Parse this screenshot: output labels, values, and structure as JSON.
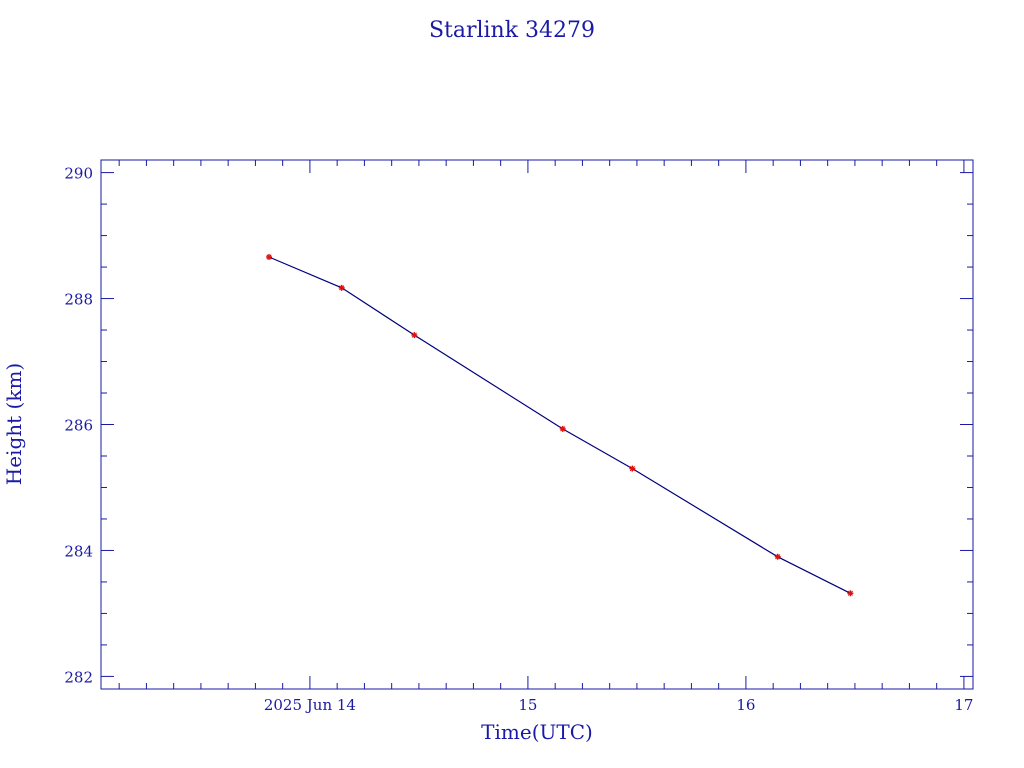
{
  "chart_data": {
    "type": "line",
    "title": "Starlink 34279",
    "xlabel": "Time(UTC)",
    "ylabel": "Height (km)",
    "x_unit": "day",
    "x_tick_labels": [
      {
        "x": "2025-06-14",
        "label": "2025 Jun 14"
      },
      {
        "x": "2025-06-15",
        "label": "15"
      },
      {
        "x": "2025-06-16",
        "label": "16"
      },
      {
        "x": "2025-06-17",
        "label": "17"
      }
    ],
    "xlim": [
      "2025-06-13T01:00",
      "2025-06-17T01:00"
    ],
    "ylim": [
      281.8,
      290.2
    ],
    "y_ticks": [
      282,
      284,
      286,
      288,
      290
    ],
    "series": [
      {
        "points": [
          {
            "x": "2025-06-13T19:30",
            "y": 288.66
          },
          {
            "x": "2025-06-14T03:30",
            "y": 288.17
          },
          {
            "x": "2025-06-14T11:30",
            "y": 287.42
          },
          {
            "x": "2025-06-15T03:50",
            "y": 285.93
          },
          {
            "x": "2025-06-15T11:30",
            "y": 285.3
          },
          {
            "x": "2025-06-16T03:30",
            "y": 283.9
          },
          {
            "x": "2025-06-16T11:30",
            "y": 283.32
          }
        ]
      }
    ],
    "colors": {
      "axis": "#1a1aa6",
      "line": "#00007f",
      "marker": "#e01010"
    },
    "grid": false
  }
}
